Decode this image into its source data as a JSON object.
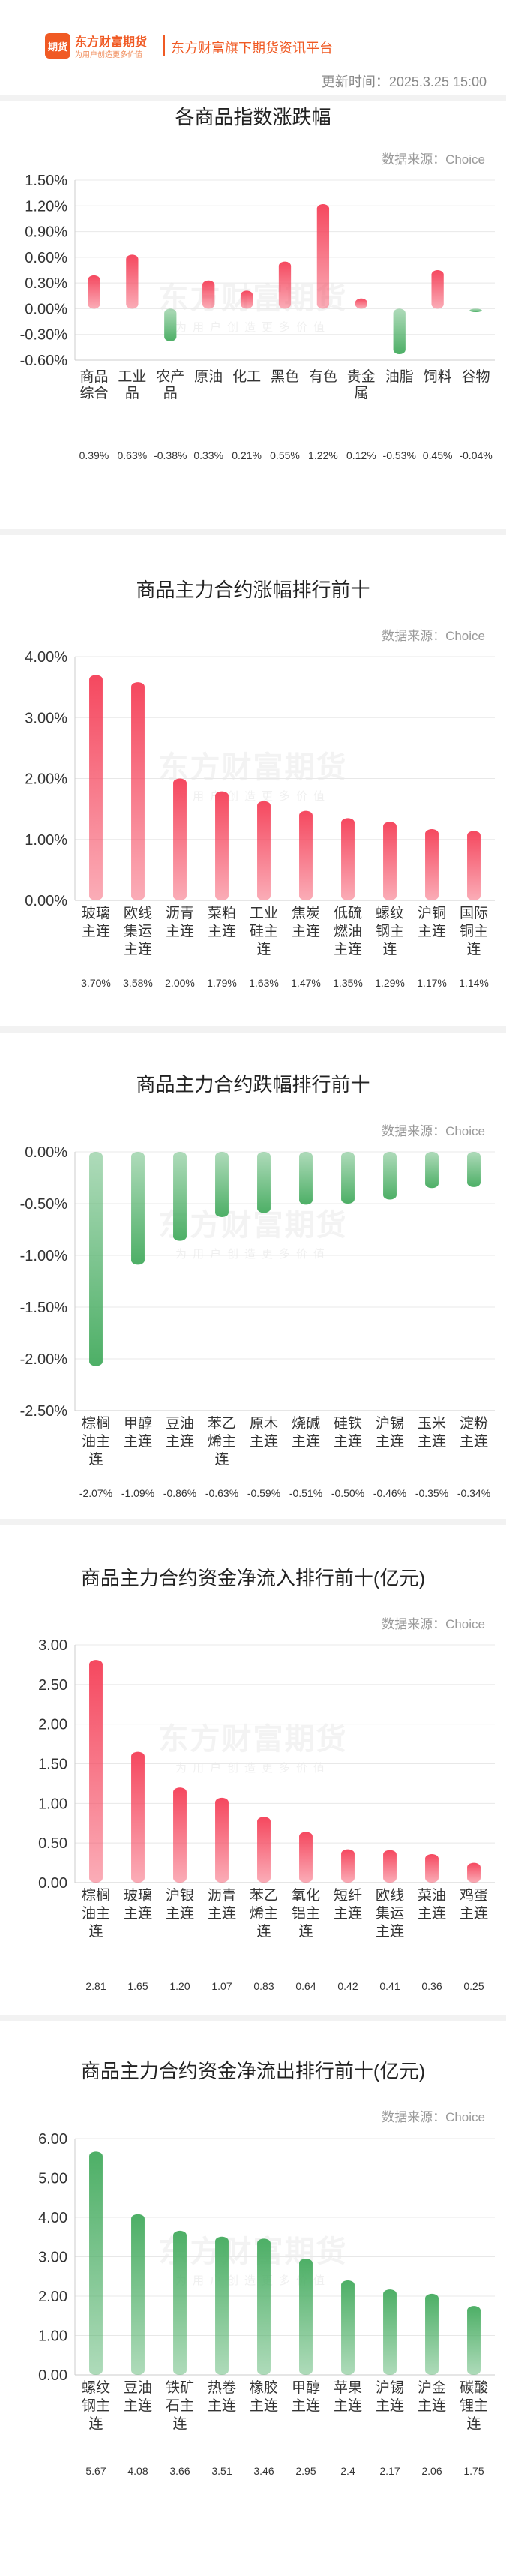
{
  "header": {
    "logo_badge": "期货",
    "logo_name": "东方财富期货",
    "logo_slogan": "为用户创造更多价值",
    "brand_title": "东方财富旗下期货资讯平台",
    "update_time": "更新时间：2025.3.25 15:00"
  },
  "watermark": {
    "main": "东方财富期货",
    "sub": "为用户创造更多价值"
  },
  "colors": {
    "positive": "#f5485f",
    "negative": "#4daf66",
    "brand": "#f05a24"
  },
  "charts": [
    {
      "title": "各商品指数涨跌幅",
      "source": "数据来源：Choice"
    },
    {
      "title": "商品主力合约涨幅排行前十",
      "source": "数据来源：Choice"
    },
    {
      "title": "商品主力合约跌幅排行前十",
      "source": "数据来源：Choice"
    },
    {
      "title": "商品主力合约资金净流入排行前十(亿元)",
      "source": "数据来源：Choice"
    },
    {
      "title": "商品主力合约资金净流出排行前十(亿元)",
      "source": "数据来源：Choice"
    }
  ],
  "chart_data": [
    {
      "type": "bar",
      "title": "各商品指数涨跌幅",
      "categories": [
        "商品综合",
        "工业品",
        "农产品",
        "原油",
        "化工",
        "黑色",
        "有色",
        "贵金属",
        "油脂",
        "饲料",
        "谷物"
      ],
      "values": [
        0.39,
        0.63,
        -0.38,
        0.33,
        0.21,
        0.55,
        1.22,
        0.12,
        -0.53,
        0.45,
        -0.04
      ],
      "value_labels": [
        "0.39%",
        "0.63%",
        "-0.38%",
        "0.33%",
        "0.21%",
        "0.55%",
        "1.22%",
        "0.12%",
        "-0.53%",
        "0.45%",
        "-0.04%"
      ],
      "yticks": [
        "1.50%",
        "1.20%",
        "0.90%",
        "0.60%",
        "0.30%",
        "0.00%",
        "-0.30%",
        "-0.60%"
      ],
      "ylim": [
        -0.6,
        1.5
      ],
      "unit": "%"
    },
    {
      "type": "bar",
      "title": "商品主力合约涨幅排行前十",
      "categories": [
        "玻璃主连",
        "欧线集运主连",
        "沥青主连",
        "菜粕主连",
        "工业硅主连",
        "焦炭主连",
        "低硫燃油主连",
        "螺纹钢主连",
        "沪铜主连",
        "国际铜主连"
      ],
      "values": [
        3.7,
        3.58,
        2.0,
        1.79,
        1.63,
        1.47,
        1.35,
        1.29,
        1.17,
        1.14
      ],
      "value_labels": [
        "3.70%",
        "3.58%",
        "2.00%",
        "1.79%",
        "1.63%",
        "1.47%",
        "1.35%",
        "1.29%",
        "1.17%",
        "1.14%"
      ],
      "yticks": [
        "4.00%",
        "3.00%",
        "2.00%",
        "1.00%",
        "0.00%"
      ],
      "ylim": [
        0,
        4
      ],
      "unit": "%"
    },
    {
      "type": "bar",
      "title": "商品主力合约跌幅排行前十",
      "categories": [
        "棕榈油主连",
        "甲醇主连",
        "豆油主连",
        "苯乙烯主连",
        "原木主连",
        "烧碱主连",
        "硅铁主连",
        "沪锡主连",
        "玉米主连",
        "淀粉主连"
      ],
      "values": [
        -2.07,
        -1.09,
        -0.86,
        -0.63,
        -0.59,
        -0.51,
        -0.5,
        -0.46,
        -0.35,
        -0.34
      ],
      "value_labels": [
        "-2.07%",
        "-1.09%",
        "-0.86%",
        "-0.63%",
        "-0.59%",
        "-0.51%",
        "-0.50%",
        "-0.46%",
        "-0.35%",
        "-0.34%"
      ],
      "yticks": [
        "0.00%",
        "-0.50%",
        "-1.00%",
        "-1.50%",
        "-2.00%",
        "-2.50%"
      ],
      "ylim": [
        -2.5,
        0
      ],
      "unit": "%"
    },
    {
      "type": "bar",
      "title": "商品主力合约资金净流入排行前十(亿元)",
      "categories": [
        "棕榈油主连",
        "玻璃主连",
        "沪银主连",
        "沥青主连",
        "苯乙烯主连",
        "氧化铝主连",
        "短纤主连",
        "欧线集运主连",
        "菜油主连",
        "鸡蛋主连"
      ],
      "values": [
        2.81,
        1.65,
        1.2,
        1.07,
        0.83,
        0.64,
        0.42,
        0.41,
        0.36,
        0.25
      ],
      "value_labels": [
        "2.81",
        "1.65",
        "1.20",
        "1.07",
        "0.83",
        "0.64",
        "0.42",
        "0.41",
        "0.36",
        "0.25"
      ],
      "yticks": [
        "3.00",
        "2.50",
        "2.00",
        "1.50",
        "1.00",
        "0.50",
        "0.00"
      ],
      "ylim": [
        0,
        3
      ],
      "unit": "亿元"
    },
    {
      "type": "bar",
      "title": "商品主力合约资金净流出排行前十(亿元)",
      "categories": [
        "螺纹钢主连",
        "豆油主连",
        "铁矿石主连",
        "热卷主连",
        "橡胶主连",
        "甲醇主连",
        "苹果主连",
        "沪锡主连",
        "沪金主连",
        "碳酸锂主连"
      ],
      "values": [
        5.67,
        4.08,
        3.66,
        3.51,
        3.46,
        2.95,
        2.4,
        2.17,
        2.06,
        1.75
      ],
      "value_labels": [
        "5.67",
        "4.08",
        "3.66",
        "3.51",
        "3.46",
        "2.95",
        "2.4",
        "2.17",
        "2.06",
        "1.75"
      ],
      "yticks": [
        "6.00",
        "5.00",
        "4.00",
        "3.00",
        "2.00",
        "1.00",
        "0.00"
      ],
      "ylim": [
        0,
        6
      ],
      "unit": "亿元",
      "bar_sign": "negative"
    }
  ]
}
